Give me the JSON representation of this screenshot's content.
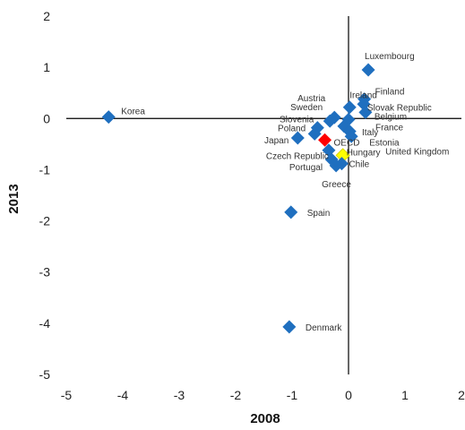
{
  "chart_data": {
    "type": "scatter",
    "xlabel": "2008",
    "ylabel": "2013",
    "xlim": [
      -5,
      2
    ],
    "ylim": [
      -5,
      2
    ],
    "xticks": [
      -5,
      -4,
      -3,
      -2,
      -1,
      0,
      1,
      2
    ],
    "yticks": [
      -5,
      -4,
      -3,
      -2,
      -1,
      0,
      1,
      2
    ],
    "grid": false,
    "colors": {
      "default": "#1f6fbf",
      "OECD": "#ff0000",
      "Hungary": "#ffff00"
    },
    "points": [
      {
        "label": "Korea",
        "x": -4.25,
        "y": 0.03,
        "color": "#1f6fbf"
      },
      {
        "label": "Luxembourg",
        "x": 0.35,
        "y": 0.95,
        "color": "#1f6fbf"
      },
      {
        "label": "Ireland",
        "x": 0.02,
        "y": 0.22,
        "color": "#1f6fbf"
      },
      {
        "label": "Finland",
        "x": 0.28,
        "y": 0.38,
        "color": "#1f6fbf"
      },
      {
        "label": "Slovak Republic",
        "x": 0.27,
        "y": 0.28,
        "color": "#1f6fbf"
      },
      {
        "label": "Belgium",
        "x": 0.3,
        "y": 0.12,
        "color": "#1f6fbf"
      },
      {
        "label": "Austria",
        "x": -0.25,
        "y": 0.02,
        "color": "#1f6fbf"
      },
      {
        "label": "Sweden",
        "x": -0.33,
        "y": -0.05,
        "color": "#1f6fbf"
      },
      {
        "label": "France",
        "x": 0.0,
        "y": -0.02,
        "color": "#1f6fbf"
      },
      {
        "label": "Italy",
        "x": -0.08,
        "y": -0.15,
        "color": "#1f6fbf"
      },
      {
        "label": "Estonia",
        "x": 0.02,
        "y": -0.25,
        "color": "#1f6fbf"
      },
      {
        "label": "United Kingdom",
        "x": 0.05,
        "y": -0.35,
        "color": "#1f6fbf"
      },
      {
        "label": "Slovenia",
        "x": -0.55,
        "y": -0.18,
        "color": "#1f6fbf"
      },
      {
        "label": "Poland",
        "x": -0.6,
        "y": -0.3,
        "color": "#1f6fbf"
      },
      {
        "label": "Japan",
        "x": -0.9,
        "y": -0.38,
        "color": "#1f6fbf"
      },
      {
        "label": "OECD",
        "x": -0.42,
        "y": -0.42,
        "color": "#ff0000"
      },
      {
        "label": "Czech Republic",
        "x": -0.35,
        "y": -0.62,
        "color": "#1f6fbf"
      },
      {
        "label": "Hungary",
        "x": -0.1,
        "y": -0.72,
        "color": "#ffff00"
      },
      {
        "label": "Chile",
        "x": -0.12,
        "y": -0.88,
        "color": "#1f6fbf"
      },
      {
        "label": "Portugal",
        "x": -0.3,
        "y": -0.8,
        "color": "#1f6fbf"
      },
      {
        "label": "Greece",
        "x": -0.22,
        "y": -0.92,
        "color": "#1f6fbf"
      },
      {
        "label": "Spain",
        "x": -1.02,
        "y": -1.83,
        "color": "#1f6fbf"
      },
      {
        "label": "Denmark",
        "x": -1.05,
        "y": -4.07,
        "color": "#1f6fbf"
      }
    ]
  }
}
